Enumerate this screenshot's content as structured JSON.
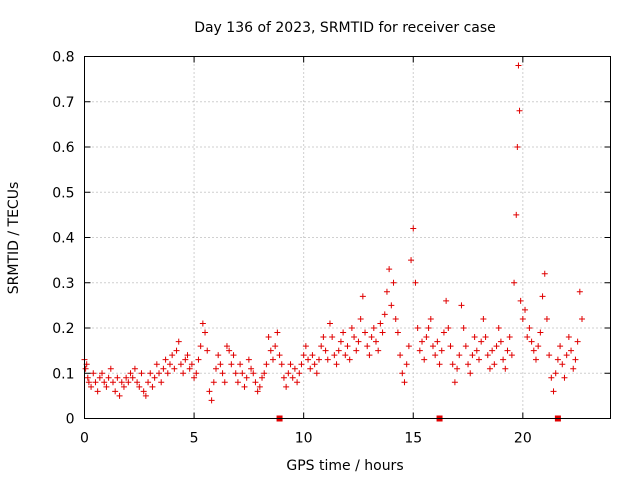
{
  "chart_data": {
    "type": "scatter",
    "title": "Day 136 of 2023, SRMTID for receiver case",
    "xlabel": "GPS time / hours",
    "ylabel": "SRMTID / TECUs",
    "xlim": [
      0,
      24
    ],
    "ylim": [
      0,
      0.8
    ],
    "xticks": [
      0,
      5,
      10,
      15,
      20
    ],
    "yticks": [
      0,
      0.1,
      0.2,
      0.3,
      0.4,
      0.5,
      0.6,
      0.7,
      0.8
    ],
    "xtick_labels": [
      "0",
      "5",
      "10",
      "15",
      "20"
    ],
    "ytick_labels": [
      "0",
      "0.1",
      "0.2",
      "0.3",
      "0.4",
      "0.5",
      "0.6",
      "0.7",
      "0.8"
    ],
    "grid": true,
    "marker": "plus",
    "color": "#e00000",
    "series": [
      {
        "name": "SRMTID",
        "points": [
          [
            0.0,
            0.13
          ],
          [
            0.05,
            0.11
          ],
          [
            0.1,
            0.12
          ],
          [
            0.15,
            0.09
          ],
          [
            0.2,
            0.08
          ],
          [
            0.3,
            0.07
          ],
          [
            0.4,
            0.1
          ],
          [
            0.5,
            0.08
          ],
          [
            0.6,
            0.06
          ],
          [
            0.7,
            0.09
          ],
          [
            0.8,
            0.1
          ],
          [
            0.9,
            0.08
          ],
          [
            1.0,
            0.07
          ],
          [
            1.1,
            0.09
          ],
          [
            1.2,
            0.11
          ],
          [
            1.3,
            0.08
          ],
          [
            1.4,
            0.06
          ],
          [
            1.5,
            0.09
          ],
          [
            1.6,
            0.05
          ],
          [
            1.7,
            0.08
          ],
          [
            1.8,
            0.07
          ],
          [
            1.9,
            0.09
          ],
          [
            2.0,
            0.08
          ],
          [
            2.1,
            0.1
          ],
          [
            2.2,
            0.09
          ],
          [
            2.3,
            0.11
          ],
          [
            2.4,
            0.08
          ],
          [
            2.5,
            0.07
          ],
          [
            2.6,
            0.1
          ],
          [
            2.7,
            0.06
          ],
          [
            2.8,
            0.05
          ],
          [
            2.9,
            0.08
          ],
          [
            3.0,
            0.1
          ],
          [
            3.1,
            0.07
          ],
          [
            3.2,
            0.09
          ],
          [
            3.3,
            0.12
          ],
          [
            3.4,
            0.1
          ],
          [
            3.5,
            0.08
          ],
          [
            3.6,
            0.11
          ],
          [
            3.7,
            0.13
          ],
          [
            3.8,
            0.1
          ],
          [
            3.9,
            0.12
          ],
          [
            4.0,
            0.14
          ],
          [
            4.1,
            0.11
          ],
          [
            4.2,
            0.15
          ],
          [
            4.3,
            0.17
          ],
          [
            4.4,
            0.12
          ],
          [
            4.5,
            0.1
          ],
          [
            4.6,
            0.13
          ],
          [
            4.7,
            0.14
          ],
          [
            4.8,
            0.11
          ],
          [
            4.9,
            0.12
          ],
          [
            5.0,
            0.09
          ],
          [
            5.1,
            0.1
          ],
          [
            5.2,
            0.13
          ],
          [
            5.3,
            0.16
          ],
          [
            5.4,
            0.21
          ],
          [
            5.5,
            0.19
          ],
          [
            5.6,
            0.15
          ],
          [
            5.7,
            0.06
          ],
          [
            5.8,
            0.04
          ],
          [
            5.9,
            0.08
          ],
          [
            6.0,
            0.11
          ],
          [
            6.1,
            0.14
          ],
          [
            6.2,
            0.12
          ],
          [
            6.3,
            0.1
          ],
          [
            6.4,
            0.08
          ],
          [
            6.5,
            0.16
          ],
          [
            6.6,
            0.15
          ],
          [
            6.7,
            0.12
          ],
          [
            6.8,
            0.14
          ],
          [
            6.9,
            0.1
          ],
          [
            7.0,
            0.08
          ],
          [
            7.1,
            0.12
          ],
          [
            7.2,
            0.1
          ],
          [
            7.3,
            0.07
          ],
          [
            7.4,
            0.09
          ],
          [
            7.5,
            0.13
          ],
          [
            7.6,
            0.11
          ],
          [
            7.7,
            0.1
          ],
          [
            7.8,
            0.08
          ],
          [
            7.9,
            0.06
          ],
          [
            8.0,
            0.07
          ],
          [
            8.1,
            0.09
          ],
          [
            8.2,
            0.1
          ],
          [
            8.3,
            0.12
          ],
          [
            8.4,
            0.18
          ],
          [
            8.5,
            0.15
          ],
          [
            8.6,
            0.13
          ],
          [
            8.7,
            0.16
          ],
          [
            8.8,
            0.19
          ],
          [
            8.9,
            0.14
          ],
          [
            9.0,
            0.12
          ],
          [
            9.1,
            0.09
          ],
          [
            9.2,
            0.07
          ],
          [
            9.3,
            0.1
          ],
          [
            9.4,
            0.12
          ],
          [
            9.5,
            0.09
          ],
          [
            9.6,
            0.11
          ],
          [
            9.7,
            0.08
          ],
          [
            9.8,
            0.1
          ],
          [
            9.9,
            0.12
          ],
          [
            10.0,
            0.14
          ],
          [
            10.1,
            0.16
          ],
          [
            10.2,
            0.13
          ],
          [
            10.3,
            0.11
          ],
          [
            10.4,
            0.14
          ],
          [
            10.5,
            0.12
          ],
          [
            10.6,
            0.1
          ],
          [
            10.7,
            0.13
          ],
          [
            10.8,
            0.16
          ],
          [
            10.9,
            0.18
          ],
          [
            11.0,
            0.15
          ],
          [
            11.1,
            0.13
          ],
          [
            11.2,
            0.21
          ],
          [
            11.3,
            0.18
          ],
          [
            11.4,
            0.14
          ],
          [
            11.5,
            0.12
          ],
          [
            11.6,
            0.15
          ],
          [
            11.7,
            0.17
          ],
          [
            11.8,
            0.19
          ],
          [
            11.9,
            0.14
          ],
          [
            12.0,
            0.16
          ],
          [
            12.1,
            0.13
          ],
          [
            12.2,
            0.2
          ],
          [
            12.3,
            0.18
          ],
          [
            12.4,
            0.15
          ],
          [
            12.5,
            0.17
          ],
          [
            12.6,
            0.22
          ],
          [
            12.7,
            0.27
          ],
          [
            12.8,
            0.19
          ],
          [
            12.9,
            0.16
          ],
          [
            13.0,
            0.14
          ],
          [
            13.1,
            0.18
          ],
          [
            13.2,
            0.2
          ],
          [
            13.3,
            0.17
          ],
          [
            13.4,
            0.15
          ],
          [
            13.5,
            0.21
          ],
          [
            13.6,
            0.19
          ],
          [
            13.7,
            0.23
          ],
          [
            13.8,
            0.28
          ],
          [
            13.9,
            0.33
          ],
          [
            14.0,
            0.25
          ],
          [
            14.1,
            0.3
          ],
          [
            14.2,
            0.22
          ],
          [
            14.3,
            0.19
          ],
          [
            14.4,
            0.14
          ],
          [
            14.5,
            0.1
          ],
          [
            14.6,
            0.08
          ],
          [
            14.7,
            0.12
          ],
          [
            14.8,
            0.16
          ],
          [
            14.9,
            0.35
          ],
          [
            15.0,
            0.42
          ],
          [
            15.1,
            0.3
          ],
          [
            15.2,
            0.2
          ],
          [
            15.3,
            0.15
          ],
          [
            15.4,
            0.17
          ],
          [
            15.5,
            0.13
          ],
          [
            15.6,
            0.18
          ],
          [
            15.7,
            0.2
          ],
          [
            15.8,
            0.22
          ],
          [
            15.9,
            0.16
          ],
          [
            16.0,
            0.14
          ],
          [
            16.1,
            0.17
          ],
          [
            16.2,
            0.12
          ],
          [
            16.3,
            0.15
          ],
          [
            16.4,
            0.19
          ],
          [
            16.5,
            0.26
          ],
          [
            16.6,
            0.2
          ],
          [
            16.7,
            0.16
          ],
          [
            16.8,
            0.12
          ],
          [
            16.9,
            0.08
          ],
          [
            17.0,
            0.11
          ],
          [
            17.1,
            0.14
          ],
          [
            17.2,
            0.25
          ],
          [
            17.3,
            0.2
          ],
          [
            17.4,
            0.16
          ],
          [
            17.5,
            0.12
          ],
          [
            17.6,
            0.1
          ],
          [
            17.7,
            0.14
          ],
          [
            17.8,
            0.18
          ],
          [
            17.9,
            0.15
          ],
          [
            18.0,
            0.13
          ],
          [
            18.1,
            0.17
          ],
          [
            18.2,
            0.22
          ],
          [
            18.3,
            0.18
          ],
          [
            18.4,
            0.14
          ],
          [
            18.5,
            0.11
          ],
          [
            18.6,
            0.15
          ],
          [
            18.7,
            0.12
          ],
          [
            18.8,
            0.16
          ],
          [
            18.9,
            0.2
          ],
          [
            19.0,
            0.17
          ],
          [
            19.1,
            0.13
          ],
          [
            19.2,
            0.11
          ],
          [
            19.3,
            0.15
          ],
          [
            19.4,
            0.18
          ],
          [
            19.5,
            0.14
          ],
          [
            19.6,
            0.3
          ],
          [
            19.7,
            0.45
          ],
          [
            19.75,
            0.6
          ],
          [
            19.8,
            0.78
          ],
          [
            19.85,
            0.68
          ],
          [
            19.9,
            0.26
          ],
          [
            20.0,
            0.22
          ],
          [
            20.1,
            0.24
          ],
          [
            20.2,
            0.18
          ],
          [
            20.3,
            0.2
          ],
          [
            20.4,
            0.17
          ],
          [
            20.5,
            0.15
          ],
          [
            20.6,
            0.13
          ],
          [
            20.7,
            0.16
          ],
          [
            20.8,
            0.19
          ],
          [
            20.9,
            0.27
          ],
          [
            21.0,
            0.32
          ],
          [
            21.1,
            0.22
          ],
          [
            21.2,
            0.14
          ],
          [
            21.3,
            0.09
          ],
          [
            21.4,
            0.06
          ],
          [
            21.5,
            0.1
          ],
          [
            21.6,
            0.13
          ],
          [
            21.7,
            0.16
          ],
          [
            21.8,
            0.12
          ],
          [
            21.9,
            0.09
          ],
          [
            22.0,
            0.14
          ],
          [
            22.1,
            0.18
          ],
          [
            22.2,
            0.15
          ],
          [
            22.3,
            0.11
          ],
          [
            22.4,
            0.13
          ],
          [
            22.5,
            0.17
          ],
          [
            22.6,
            0.28
          ],
          [
            22.7,
            0.22
          ]
        ]
      }
    ],
    "zero_markers": [
      8.9,
      16.2,
      21.6
    ]
  }
}
